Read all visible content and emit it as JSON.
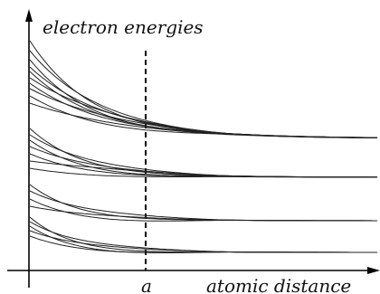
{
  "labels": {
    "y_axis": "electron energies",
    "x_axis": "atomic distance",
    "marker": "a"
  },
  "colors": {
    "ink": "#000000",
    "background": "#ffffff"
  }
}
